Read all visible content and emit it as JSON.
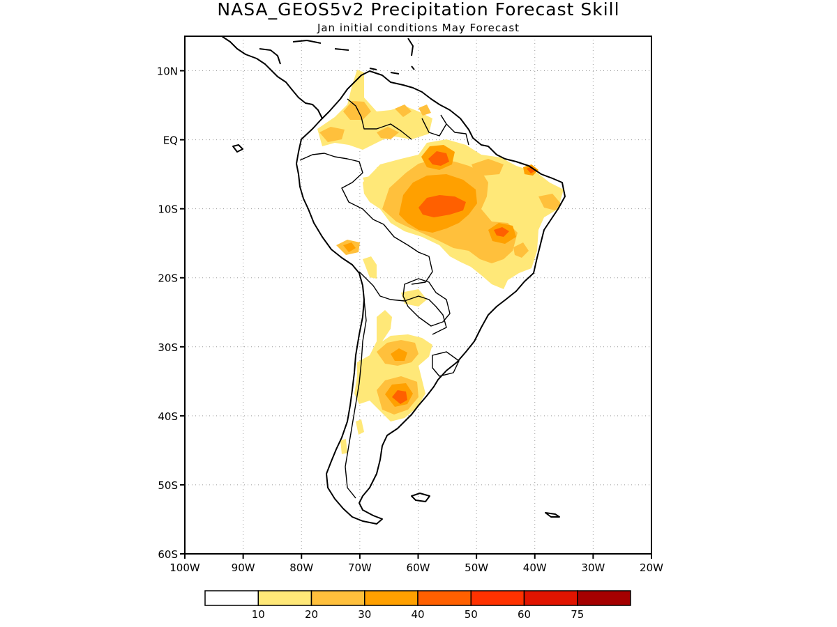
{
  "map": {
    "title": "NASA_GEOS5v2 Precipitation Forecast Skill",
    "subtitle": "Jan initial conditions   May Forecast",
    "lat_labels": [
      "10N",
      "EQ",
      "10S",
      "20S",
      "30S",
      "40S",
      "50S",
      "60S"
    ],
    "lon_labels": [
      "100W",
      "90W",
      "80W",
      "70W",
      "60W",
      "50W",
      "40W",
      "30W",
      "20W"
    ],
    "region": "South America",
    "lat_range": [
      -60,
      15
    ],
    "lon_range": [
      -100,
      -20
    ]
  },
  "colorbar": {
    "labels": [
      "10",
      "20",
      "30",
      "40",
      "50",
      "60",
      "75"
    ],
    "colors": [
      "#ffffff",
      "#ffe878",
      "#ffc03c",
      "#ffa000",
      "#ff6000",
      "#ff3200",
      "#e11400",
      "#a50000"
    ]
  }
}
